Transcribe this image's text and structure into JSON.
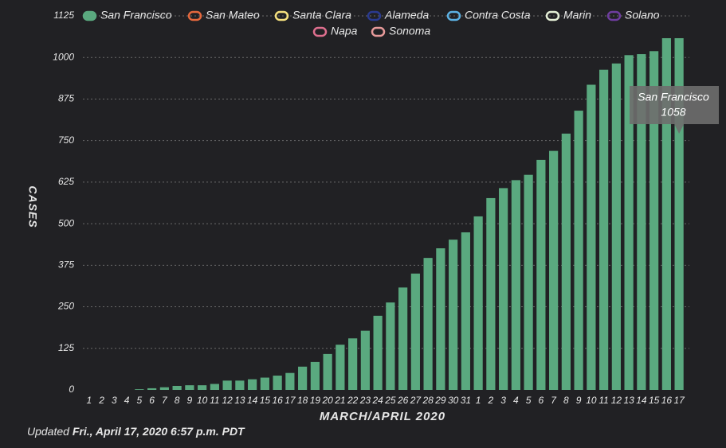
{
  "chart_data": {
    "type": "bar",
    "y_label": "CASES",
    "x_label": "MARCH/APRIL 2020",
    "categories": [
      "1",
      "2",
      "3",
      "4",
      "5",
      "6",
      "7",
      "8",
      "9",
      "10",
      "11",
      "12",
      "13",
      "14",
      "15",
      "16",
      "17",
      "18",
      "19",
      "20",
      "21",
      "22",
      "23",
      "24",
      "25",
      "26",
      "27",
      "28",
      "29",
      "30",
      "31",
      "1",
      "2",
      "3",
      "4",
      "5",
      "6",
      "7",
      "8",
      "9",
      "10",
      "11",
      "12",
      "13",
      "14",
      "15",
      "16",
      "17"
    ],
    "series": [
      {
        "name": "San Francisco",
        "color": "#5aa97f",
        "values": [
          0,
          0,
          0,
          0,
          2,
          5,
          8,
          12,
          14,
          14,
          18,
          28,
          28,
          32,
          37,
          43,
          51,
          70,
          84,
          108,
          136,
          155,
          178,
          223,
          263,
          308,
          350,
          397,
          426,
          452,
          474,
          522,
          577,
          607,
          631,
          647,
          692,
          719,
          771,
          840,
          918,
          963,
          982,
          1007,
          1010,
          1019,
          1058,
          1058
        ]
      },
      {
        "name": "San Mateo",
        "color": "#e5683d"
      },
      {
        "name": "Santa Clara",
        "color": "#f5e07e"
      },
      {
        "name": "Alameda",
        "color": "#2a3a8f"
      },
      {
        "name": "Contra Costa",
        "color": "#5cb1e3"
      },
      {
        "name": "Marin",
        "color": "#e4efd6"
      },
      {
        "name": "Solano",
        "color": "#6e3d9f"
      },
      {
        "name": "Napa",
        "color": "#de6f8e"
      },
      {
        "name": "Sonoma",
        "color": "#e79a9a"
      }
    ],
    "ylim": [
      0,
      1125
    ],
    "yticks": [
      0,
      125,
      250,
      375,
      500,
      625,
      750,
      875,
      1000,
      1125
    ],
    "grid": true,
    "legend": "top",
    "updated_label": "Updated",
    "updated_time": "Fri., April 17, 2020 6:57 p.m. PDT"
  }
}
